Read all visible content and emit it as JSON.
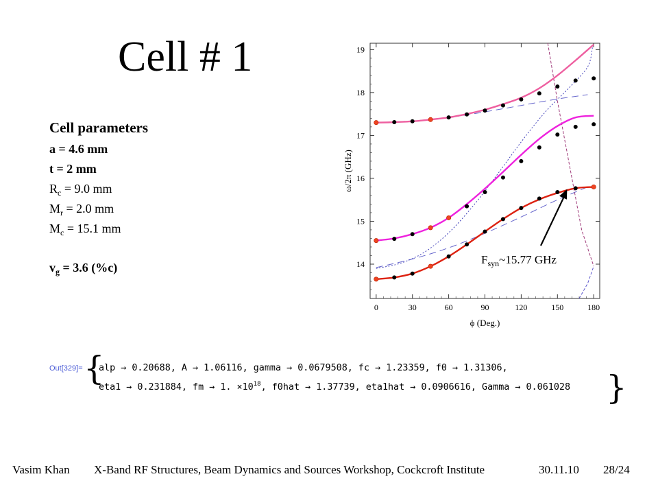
{
  "slide": {
    "title": "Cell # 1"
  },
  "params": {
    "heading": "Cell parameters",
    "a": "a = 4.6 mm",
    "t": "t = 2 mm",
    "rc_main": "R",
    "rc_sub": "c",
    "rc_rest": " = 9.0 mm",
    "mr_main": "M",
    "mr_sub": "r",
    "mr_rest": " = 2.0 mm",
    "mc_main": "M",
    "mc_sub": "c",
    "mc_rest": " = 15.1 mm",
    "vg_main": "v",
    "vg_sub": "g",
    "vg_rest": " = 3.6 (%c)"
  },
  "output": {
    "label": "Out[329]=",
    "line1": "alp → 0.20688, A → 1.06116, gamma → 0.0679508, fc → 1.23359, f0 → 1.31306,",
    "line2_pre": "eta1 → 0.231884, fm → 1. ×10",
    "line2_exp": "18",
    "line2_post": ", f0hat → 1.37739, eta1hat → 0.0906616, Gamma → 0.061028"
  },
  "footer": {
    "author": "Vasim Khan",
    "event": "X-Band RF Structures, Beam Dynamics and Sources Workshop, Cockcroft Institute",
    "date": "30.11.10",
    "page": "28/24"
  },
  "chart_data": {
    "type": "line",
    "xlabel": "ϕ (Deg.)",
    "ylabel": "ω/2π (GHz)",
    "xlim": [
      -5,
      185
    ],
    "ylim": [
      13.2,
      19.15
    ],
    "xticks": [
      0,
      30,
      60,
      90,
      120,
      150,
      180
    ],
    "yticks": [
      14,
      15,
      16,
      17,
      18,
      19
    ],
    "annotation": {
      "main": "F",
      "sub": "syn",
      "rest": "~15.77 GHz",
      "arrow_to": [
        158,
        15.75
      ]
    },
    "curves": [
      {
        "color": "#ee5fa0",
        "x": [
          0,
          15,
          30,
          45,
          60,
          75,
          90,
          105,
          120,
          135,
          150,
          165,
          180
        ],
        "y": [
          17.3,
          17.31,
          17.33,
          17.37,
          17.42,
          17.5,
          17.6,
          17.73,
          17.88,
          18.1,
          18.4,
          18.75,
          19.12
        ]
      },
      {
        "color": "#ee22dd",
        "x": [
          0,
          15,
          30,
          45,
          60,
          75,
          90,
          105,
          120,
          135,
          150,
          165,
          180
        ],
        "y": [
          14.55,
          14.6,
          14.7,
          14.85,
          15.08,
          15.4,
          15.76,
          16.15,
          16.55,
          16.92,
          17.22,
          17.42,
          17.46
        ]
      },
      {
        "color": "#dd2211",
        "x": [
          0,
          15,
          30,
          45,
          60,
          75,
          90,
          105,
          120,
          135,
          150,
          165,
          180
        ],
        "y": [
          13.65,
          13.69,
          13.78,
          13.95,
          14.18,
          14.46,
          14.76,
          15.05,
          15.31,
          15.51,
          15.66,
          15.77,
          15.8
        ]
      }
    ],
    "dashed_lines": [
      {
        "color": "#6666cc",
        "x": [
          0,
          30,
          60,
          90,
          120,
          150,
          175
        ],
        "y": [
          13.92,
          14.12,
          14.38,
          14.72,
          15.1,
          15.5,
          15.8
        ]
      },
      {
        "color": "#6666cc",
        "x": [
          0,
          30,
          60,
          90,
          120,
          150,
          175
        ],
        "y": [
          17.3,
          17.34,
          17.42,
          17.55,
          17.7,
          17.85,
          17.95
        ]
      }
    ],
    "dotted_lines": [
      {
        "color": "#4444bb",
        "x": [
          0,
          20,
          40,
          60,
          80,
          100,
          120,
          140,
          160,
          175,
          179
        ],
        "y": [
          13.9,
          14.02,
          14.28,
          14.73,
          15.35,
          16.08,
          16.85,
          17.55,
          18.12,
          18.6,
          19.05
        ]
      }
    ],
    "steep_lines": [
      {
        "color": "#a03b7a",
        "x": [
          142,
          150,
          160,
          170,
          180
        ],
        "y": [
          19.15,
          17.8,
          16.3,
          14.8,
          13.95
        ]
      },
      {
        "color": "#5a55cc",
        "x": [
          168,
          175,
          180
        ],
        "y": [
          13.2,
          13.55,
          13.95
        ]
      }
    ],
    "points_black": [
      {
        "x": [
          15,
          30,
          60,
          75,
          90,
          105,
          120,
          135,
          150,
          165,
          180
        ],
        "y": [
          17.31,
          17.33,
          17.42,
          17.49,
          17.58,
          17.7,
          17.84,
          17.98,
          18.14,
          18.28,
          18.33
        ]
      },
      {
        "x": [
          15,
          30,
          75,
          90,
          105,
          120,
          135,
          150,
          165,
          180
        ],
        "y": [
          14.59,
          14.7,
          15.35,
          15.68,
          16.02,
          16.4,
          16.72,
          17.02,
          17.2,
          17.26
        ]
      },
      {
        "x": [
          15,
          30,
          60,
          75,
          90,
          105,
          120,
          135,
          150,
          165
        ],
        "y": [
          13.69,
          13.78,
          14.18,
          14.46,
          14.76,
          15.05,
          15.31,
          15.53,
          15.68,
          15.77
        ]
      }
    ],
    "points_red": [
      {
        "x": [
          0,
          45
        ],
        "y": [
          17.3,
          17.37
        ]
      },
      {
        "x": [
          0,
          45,
          60
        ],
        "y": [
          14.55,
          14.85,
          15.08
        ]
      },
      {
        "x": [
          0,
          45,
          180
        ],
        "y": [
          13.65,
          13.95,
          15.8
        ]
      }
    ]
  }
}
